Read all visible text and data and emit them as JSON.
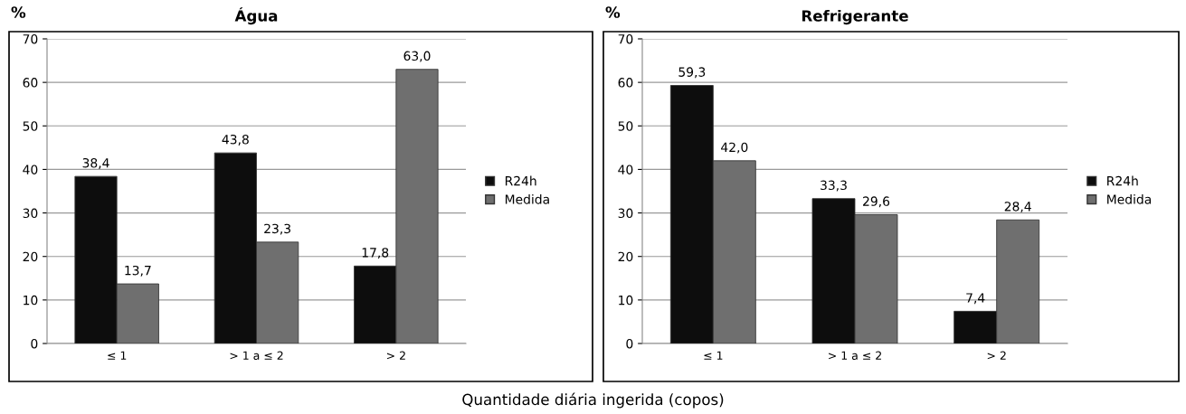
{
  "chart_data": [
    {
      "type": "bar",
      "title": "Água",
      "ylabel": "%",
      "categories": [
        "≤ 1",
        "> 1 a ≤ 2",
        "> 2"
      ],
      "series": [
        {
          "name": "R24h",
          "color": "#0d0d0d",
          "values": [
            38.4,
            43.8,
            17.8
          ],
          "value_labels": [
            "38,4",
            "43,8",
            "17,8"
          ]
        },
        {
          "name": "Medida",
          "color": "#6f6f6f",
          "values": [
            13.7,
            23.3,
            63.0
          ],
          "value_labels": [
            "13,7",
            "23,3",
            "63,0"
          ]
        }
      ],
      "ylim": [
        0,
        70
      ],
      "yticks": [
        0,
        10,
        20,
        30,
        40,
        50,
        60,
        70
      ],
      "grid": "y",
      "legend": "right",
      "annotations": [
        "Quantidade diária ingerida (copos)"
      ]
    },
    {
      "type": "bar",
      "title": "Refrigerante",
      "ylabel": "%",
      "categories": [
        "≤ 1",
        "> 1 a ≤ 2",
        "> 2"
      ],
      "series": [
        {
          "name": "R24h",
          "color": "#0d0d0d",
          "values": [
            59.3,
            33.3,
            7.4
          ],
          "value_labels": [
            "59,3",
            "33,3",
            "7,4"
          ]
        },
        {
          "name": "Medida",
          "color": "#6f6f6f",
          "values": [
            42.0,
            29.6,
            28.4
          ],
          "value_labels": [
            "42,0",
            "29,6",
            "28,4"
          ]
        }
      ],
      "ylim": [
        0,
        70
      ],
      "yticks": [
        0,
        10,
        20,
        30,
        40,
        50,
        60,
        70
      ],
      "grid": "y",
      "legend": "right"
    }
  ]
}
